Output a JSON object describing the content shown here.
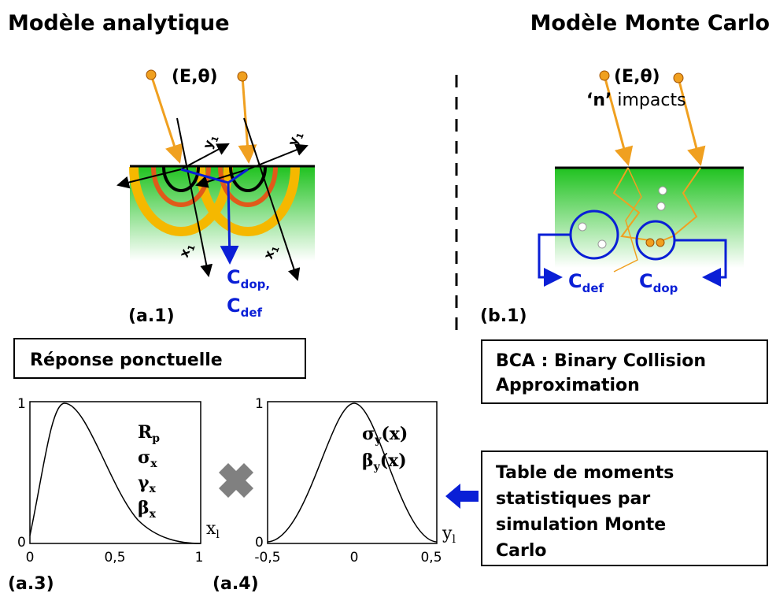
{
  "left": {
    "title": "Modèle analytique",
    "beam": "(E,θ)",
    "axis_y": [
      {
        "base": "y",
        "sub": "1"
      },
      {
        "base": "y",
        "sub": "1"
      }
    ],
    "axis_x": [
      {
        "base": "x",
        "sub": "1"
      },
      {
        "base": "x",
        "sub": "1"
      }
    ],
    "conc_dop": {
      "base": "C",
      "sub": "dop,"
    },
    "conc_def": {
      "base": "C",
      "sub": "def"
    },
    "label": "(a.1)"
  },
  "right": {
    "title": "Modèle Monte Carlo",
    "beam": "(E,θ)",
    "impacts_n": "‘n’",
    "impacts_text": " impacts",
    "conc_def": {
      "base": "C",
      "sub": "def"
    },
    "conc_dop": {
      "base": "C",
      "sub": "dop"
    },
    "label": "(b.1)"
  },
  "boxes": {
    "response": "Réponse ponctuelle",
    "bca": [
      "BCA : Binary Collision",
      "Approximation"
    ],
    "table": [
      "Table de moments",
      "statistiques par",
      "simulation Monte",
      "Carlo"
    ]
  },
  "plot_a3": {
    "yticks": [
      "1",
      "0"
    ],
    "xticks": [
      "0",
      "0,5",
      "1"
    ],
    "params": [
      {
        "base": "R",
        "sub": "p"
      },
      {
        "base": "σ",
        "sub": "x"
      },
      {
        "base": "γ",
        "sub": "x"
      },
      {
        "base": "β",
        "sub": "x"
      }
    ],
    "axis": {
      "base": "x",
      "sub": "l"
    },
    "label": "(a.3)"
  },
  "plot_a4": {
    "yticks": [
      "1",
      "0"
    ],
    "xticks": [
      "-0,5",
      "0",
      "0,5"
    ],
    "params": [
      {
        "base": "σ",
        "sub": "y",
        "tail": "(x)"
      },
      {
        "base": "β",
        "sub": "y",
        "tail": "(x)"
      }
    ],
    "axis": {
      "base": "y",
      "sub": "l"
    },
    "label": "(a.4)"
  }
}
